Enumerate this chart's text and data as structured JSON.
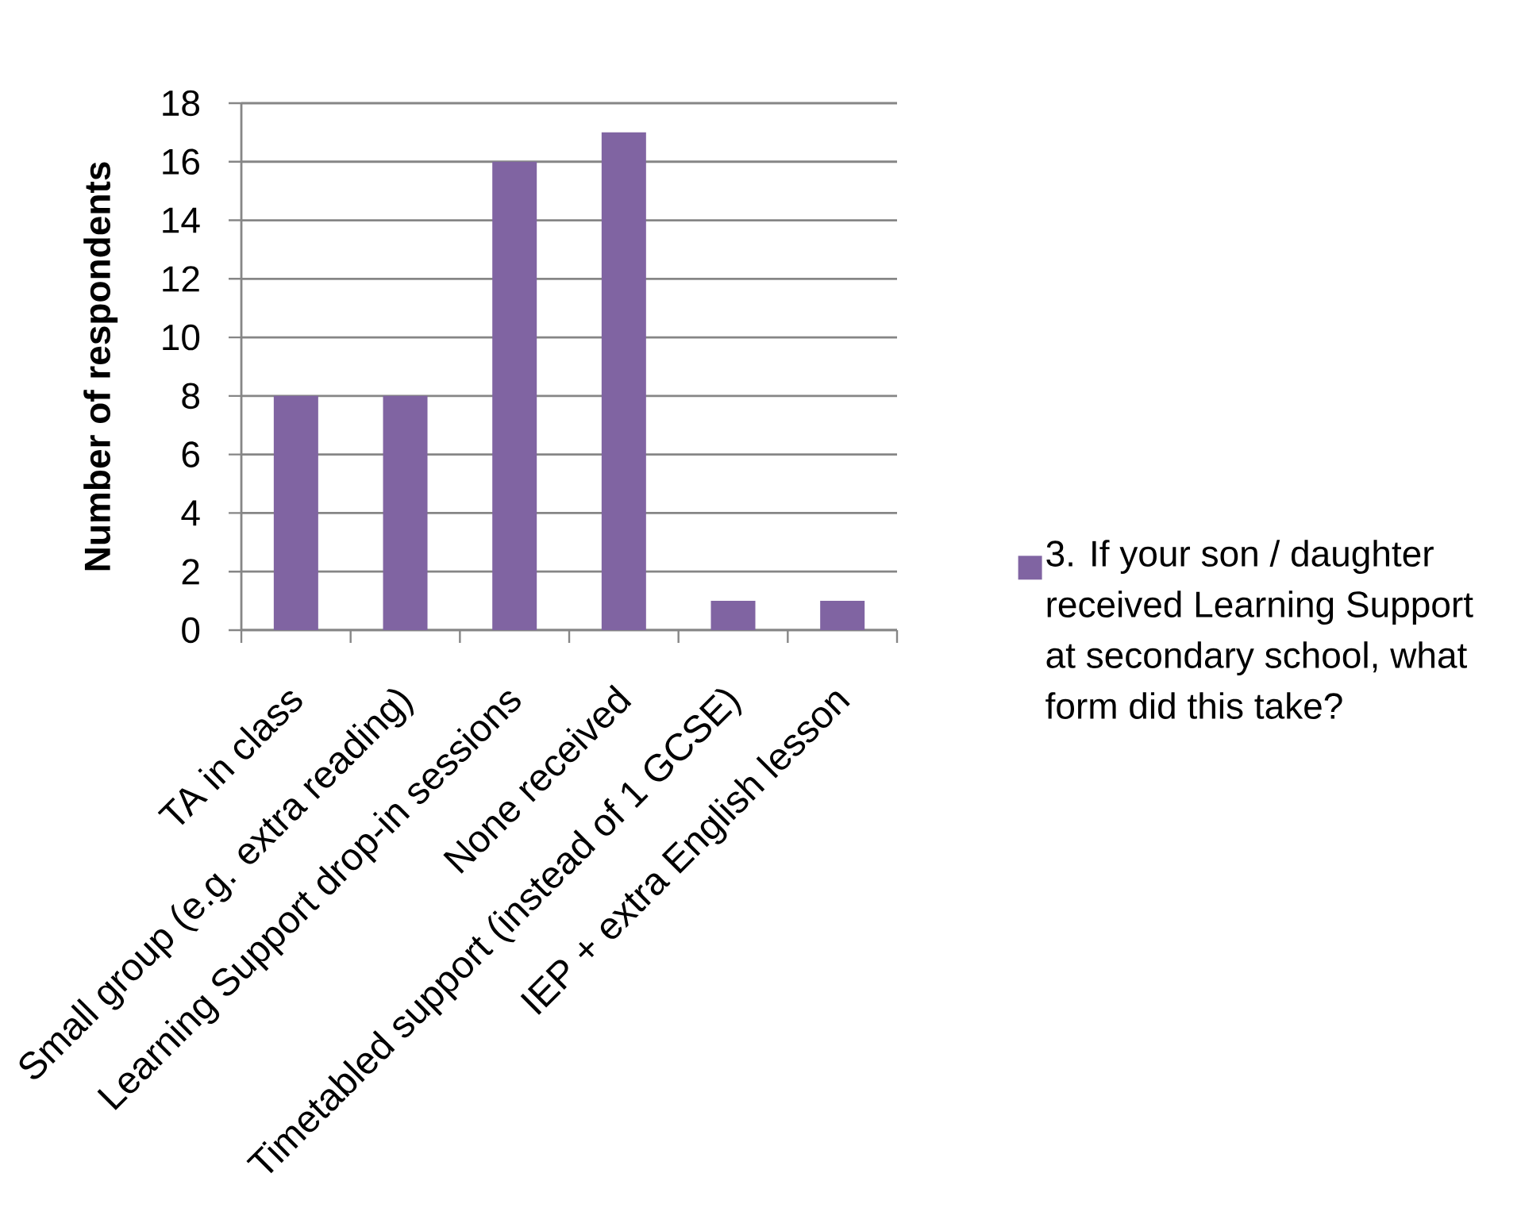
{
  "chart_data": {
    "type": "bar",
    "ylabel": "Number of respondents",
    "categories": [
      "TA in class",
      "Small group (e.g. extra reading)",
      "Learning Support drop-in sessions",
      "None received",
      "Timetabled support (instead of 1 GCSE)",
      "IEP + extra English lesson"
    ],
    "series": [
      {
        "name": "3. If your son / daughter received Learning Support at secondary school, what form did this take?",
        "color": "#8064a2",
        "values": [
          8,
          8,
          16,
          17,
          1,
          1
        ]
      }
    ],
    "ylim": [
      0,
      18
    ],
    "yticks": [
      0,
      2,
      4,
      6,
      8,
      10,
      12,
      14,
      16,
      18
    ],
    "grid": "y",
    "legend": "right"
  }
}
